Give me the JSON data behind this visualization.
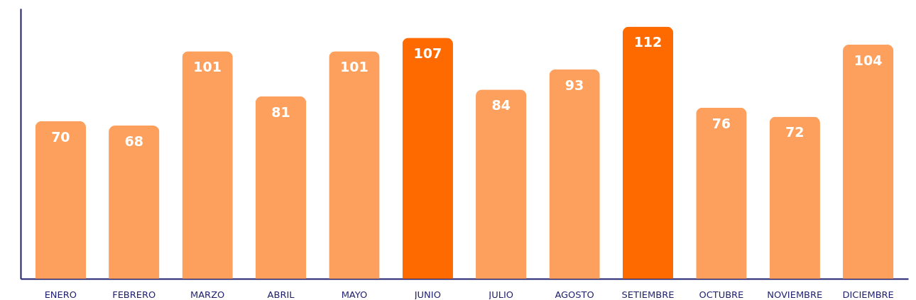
{
  "chart_data": {
    "type": "bar",
    "categories": [
      "ENERO",
      "FEBRERO",
      "MARZO",
      "ABRIL",
      "MAYO",
      "JUNIO",
      "JULIO",
      "AGOSTO",
      "SETIEMBRE",
      "OCTUBRE",
      "NOVIEMBRE",
      "DICIEMBRE"
    ],
    "values": [
      70,
      68,
      101,
      81,
      101,
      107,
      84,
      93,
      112,
      76,
      72,
      104
    ],
    "colors": [
      "#fda05e",
      "#fda05e",
      "#fda05e",
      "#fda05e",
      "#fda05e",
      "#ff6a00",
      "#fda05e",
      "#fda05e",
      "#ff6a00",
      "#fda05e",
      "#fda05e",
      "#fda05e"
    ],
    "data_labels": true,
    "tick_labels": "x"
  }
}
